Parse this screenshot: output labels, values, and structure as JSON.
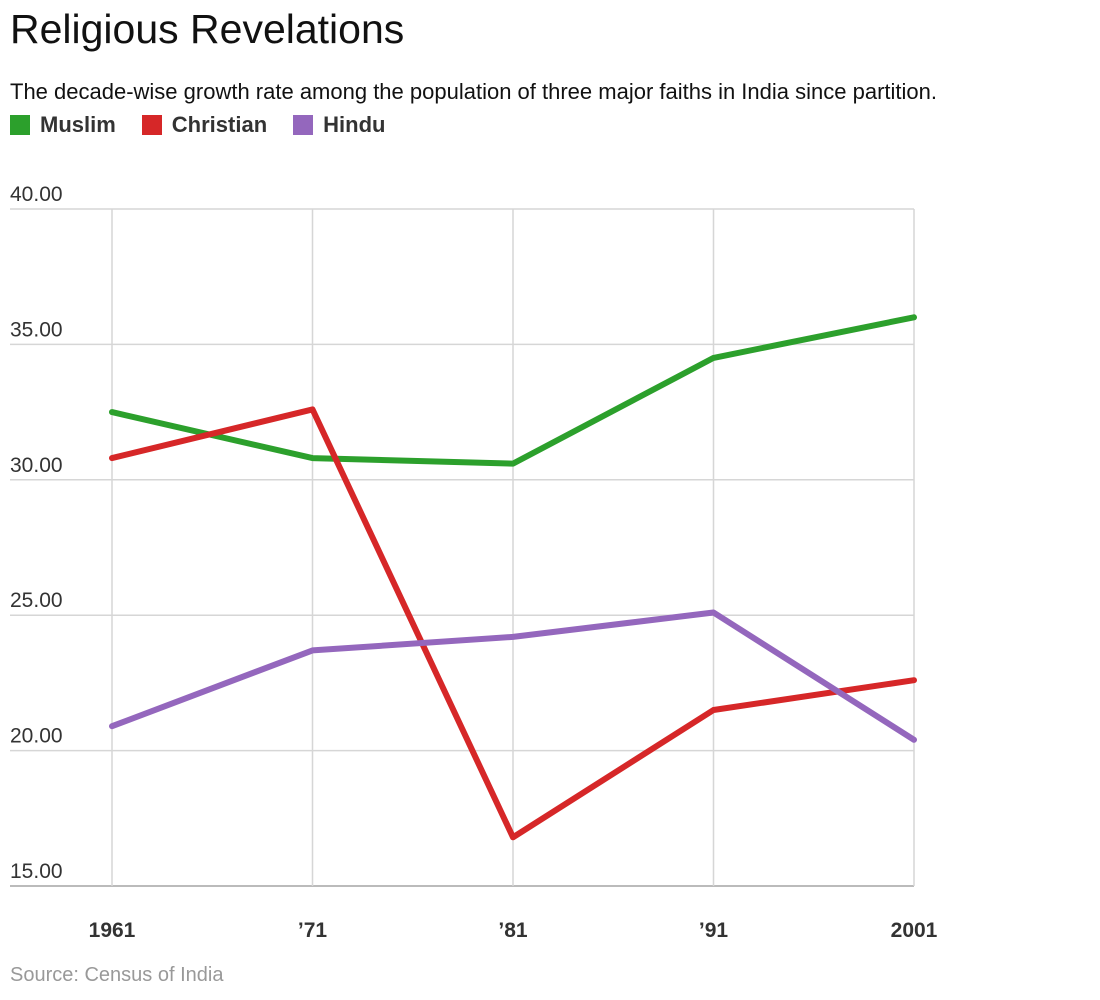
{
  "chart_data": {
    "type": "line",
    "title": "Religious Revelations",
    "subtitle": "The decade-wise growth rate among the population of three major faiths in India since partition.",
    "categories": [
      "1961",
      "’71",
      "’81",
      "’91",
      "2001"
    ],
    "series": [
      {
        "name": "Muslim",
        "color": "#2ca02c",
        "values": [
          32.5,
          30.8,
          30.6,
          34.5,
          36.0
        ]
      },
      {
        "name": "Christian",
        "color": "#d62728",
        "values": [
          30.8,
          32.6,
          16.8,
          21.5,
          22.6
        ]
      },
      {
        "name": "Hindu",
        "color": "#9467bd",
        "values": [
          20.9,
          23.7,
          24.2,
          25.1,
          20.4
        ]
      }
    ],
    "ylim": [
      15,
      40
    ],
    "yticks": [
      "15.00",
      "20.00",
      "25.00",
      "30.00",
      "35.00",
      "40.00"
    ],
    "ytick_values": [
      15,
      20,
      25,
      30,
      35,
      40
    ],
    "xlabel": "",
    "ylabel": "",
    "grid": true,
    "legend": "top-left",
    "source": "Source: Census of India"
  }
}
